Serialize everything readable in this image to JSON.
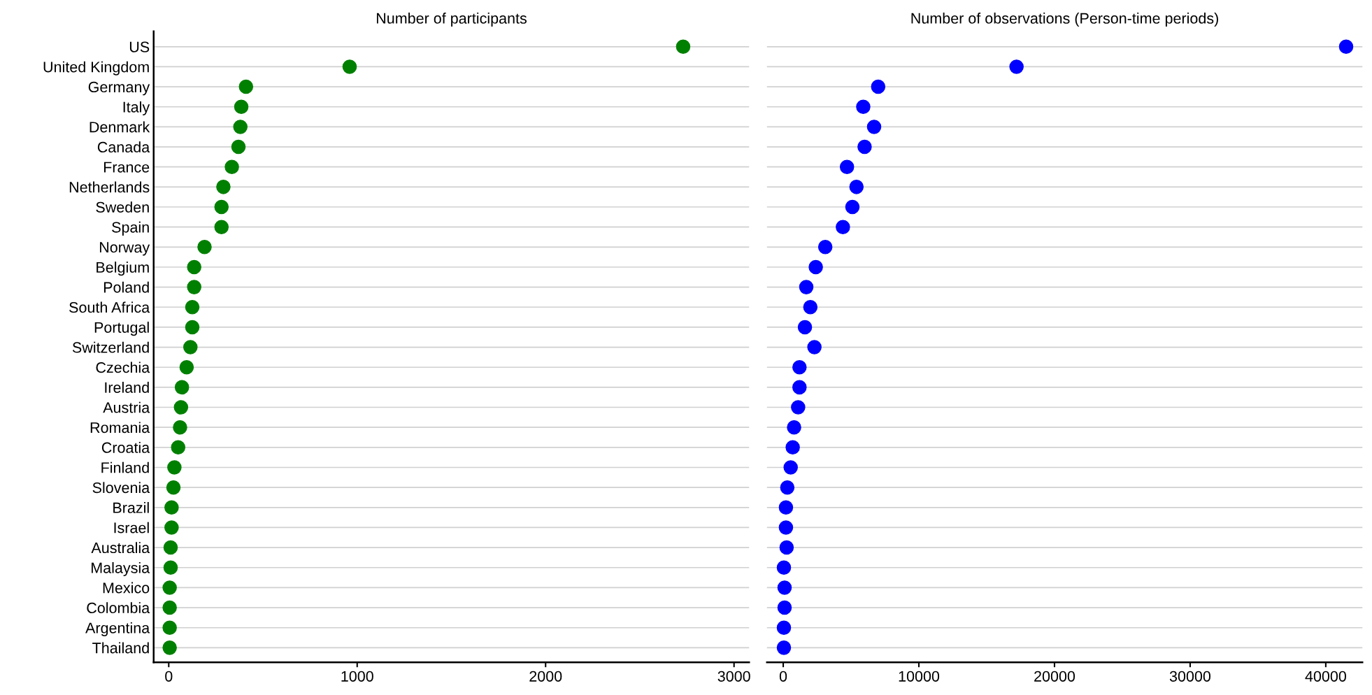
{
  "chart_data": [
    {
      "type": "scatter",
      "orientation": "horizontal",
      "title": "Number of participants",
      "categories": [
        "US",
        "United Kingdom",
        "Germany",
        "Italy",
        "Denmark",
        "Canada",
        "France",
        "Netherlands",
        "Sweden",
        "Spain",
        "Norway",
        "Belgium",
        "Poland",
        "South Africa",
        "Portugal",
        "Switzerland",
        "Czechia",
        "Ireland",
        "Austria",
        "Romania",
        "Croatia",
        "Finland",
        "Slovenia",
        "Brazil",
        "Israel",
        "Australia",
        "Malaysia",
        "Mexico",
        "Colombia",
        "Argentina",
        "Thailand"
      ],
      "series": [
        {
          "color": "#008000",
          "values": [
            2730,
            960,
            410,
            385,
            380,
            370,
            335,
            290,
            280,
            280,
            190,
            135,
            135,
            125,
            125,
            115,
            95,
            70,
            65,
            60,
            50,
            30,
            25,
            15,
            15,
            10,
            10,
            5,
            5,
            5,
            5
          ]
        }
      ],
      "xlim": [
        -80,
        3080
      ],
      "xticks": [
        0,
        1000,
        2000,
        3000
      ],
      "grid": "y",
      "marker": "circle"
    },
    {
      "type": "scatter",
      "orientation": "horizontal",
      "title": "Number of observations (Person-time periods)",
      "categories": [
        null,
        null,
        null,
        null,
        null,
        null,
        null,
        null,
        null,
        null,
        null,
        null,
        null,
        null,
        null,
        null,
        null,
        null,
        null,
        null,
        null,
        null,
        null,
        null,
        null,
        null,
        null,
        null,
        null,
        null,
        null
      ],
      "series": [
        {
          "color": "#0000ff",
          "values": [
            41500,
            17200,
            7000,
            5900,
            6700,
            6000,
            4700,
            5400,
            5100,
            4400,
            3100,
            2400,
            1700,
            2000,
            1600,
            2300,
            1200,
            1200,
            1100,
            800,
            700,
            550,
            300,
            200,
            200,
            250,
            50,
            100,
            100,
            50,
            50
          ]
        }
      ],
      "xlim": [
        -1200,
        42700
      ],
      "xticks": [
        0,
        10000,
        20000,
        30000,
        40000
      ],
      "grid": "y",
      "marker": "circle",
      "tick_labels": "x"
    }
  ]
}
